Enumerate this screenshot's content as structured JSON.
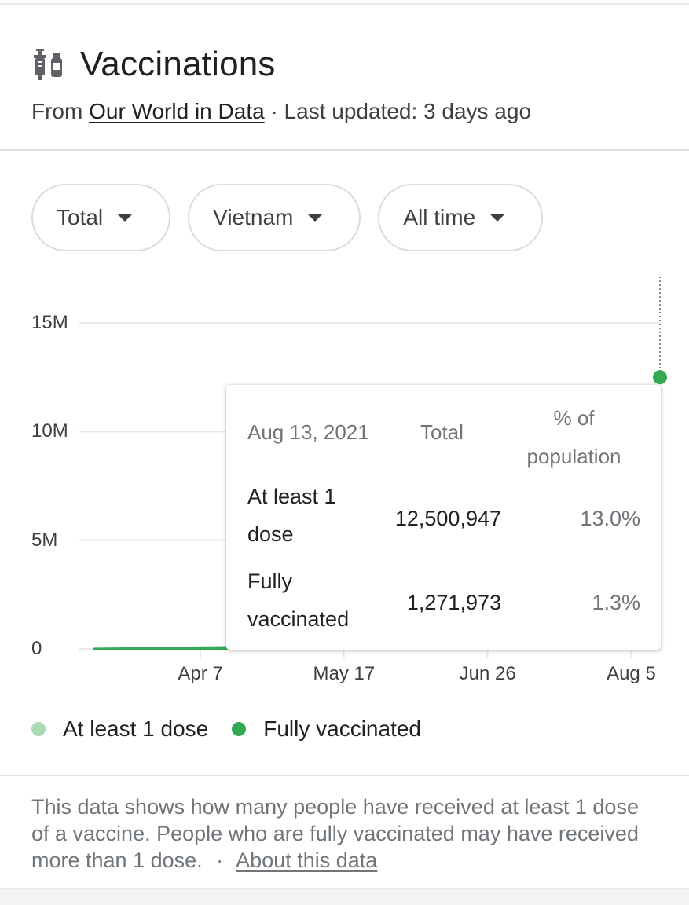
{
  "header": {
    "icon": "syringe-vial-icon",
    "title": "Vaccinations",
    "source_prefix": "From",
    "source_link": "Our World in Data",
    "source_suffix": "· Last updated: 3 days ago"
  },
  "filters": [
    {
      "label": "Total"
    },
    {
      "label": "Vietnam"
    },
    {
      "label": "All time"
    }
  ],
  "colors": {
    "at_least_1_dose": "#a8dab5",
    "fully_vaccinated": "#34a853",
    "gridline": "#e8eaed",
    "text_secondary": "#70757a"
  },
  "tooltip": {
    "date": "Aug 13, 2021",
    "col_total": "Total",
    "col_pct": "% of population",
    "rows": [
      {
        "label": "At least 1 dose",
        "total": "12,500,947",
        "pct": "13.0%"
      },
      {
        "label": "Fully vaccinated",
        "total": "1,271,973",
        "pct": "1.3%"
      }
    ]
  },
  "legend": [
    {
      "label": "At least 1 dose"
    },
    {
      "label": "Fully vaccinated"
    }
  ],
  "note": {
    "text": "This data shows how many people have received at least 1 dose of a vaccine. People who are fully vaccinated may have received more than 1 dose.",
    "separator": "·",
    "link": "About this data"
  },
  "chart_data": {
    "type": "line",
    "title": "",
    "xlabel": "",
    "ylabel": "",
    "x_ticks": [
      "Apr 7",
      "May 17",
      "Jun 26",
      "Aug 5"
    ],
    "y_ticks": [
      "0",
      "5M",
      "10M",
      "15M"
    ],
    "y_tick_values": [
      0,
      5000000,
      10000000,
      15000000
    ],
    "ylim": [
      0,
      17000000
    ],
    "xlim": [
      "2021-03-08",
      "2021-08-13"
    ],
    "grid": true,
    "legend_position": "bottom-left",
    "series": [
      {
        "name": "At least 1 dose",
        "points": [
          [
            "2021-03-08",
            0
          ],
          [
            "2021-04-07",
            60000
          ],
          [
            "2021-04-20",
            80000
          ]
        ],
        "final": [
          "2021-08-13",
          12500947
        ]
      },
      {
        "name": "Fully vaccinated",
        "points": [
          [
            "2021-03-08",
            0
          ],
          [
            "2021-04-07",
            0
          ],
          [
            "2021-04-20",
            1000
          ]
        ],
        "final": [
          "2021-08-13",
          1271973
        ]
      }
    ],
    "hover_date": "2021-08-13"
  }
}
